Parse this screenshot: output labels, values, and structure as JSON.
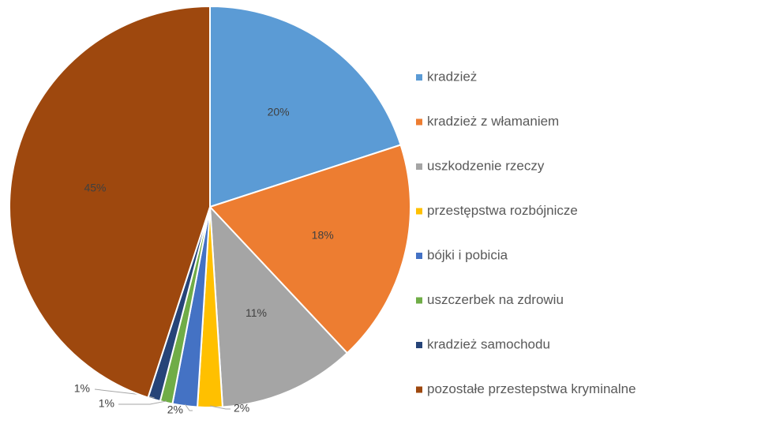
{
  "chart_data": {
    "type": "pie",
    "categories": [
      "kradzież",
      "kradzież z włamaniem",
      "uszkodzenie rzeczy",
      "przestępstwa rozbójnicze",
      "bójki i pobicia",
      "uszczerbek na zdrowiu",
      "kradzież samochodu",
      "pozostałe przestepstwa kryminalne"
    ],
    "values": [
      20,
      18,
      11,
      2,
      2,
      1,
      1,
      45
    ],
    "value_labels": [
      "20%",
      "18%",
      "11%",
      "2%",
      "2%",
      "1%",
      "1%",
      "45%"
    ],
    "colors": [
      "#5b9bd5",
      "#ed7d31",
      "#a5a5a5",
      "#ffc000",
      "#4472c4",
      "#70ad47",
      "#264478",
      "#9e480e"
    ],
    "legend": "right"
  }
}
